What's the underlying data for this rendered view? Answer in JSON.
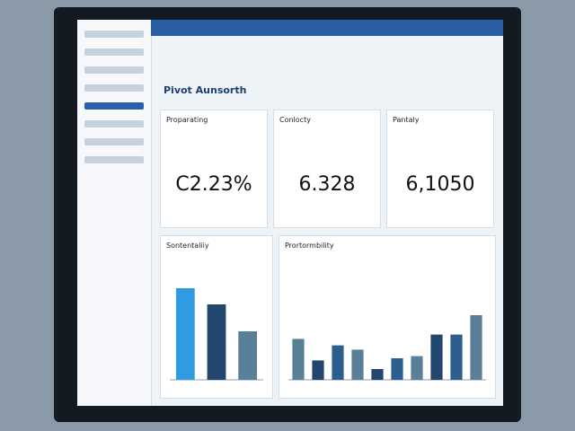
{
  "header": {
    "title": "Pivot Aunsorth"
  },
  "cards": [
    {
      "title": "Proparating",
      "value": "C2.23%"
    },
    {
      "title": "Conlocty",
      "value": "6.328"
    },
    {
      "title": "Pantaly",
      "value": "6,1050"
    }
  ],
  "charts": [
    {
      "title": "Sontentaliiy",
      "values": [
        85,
        70,
        45
      ],
      "colors": [
        "#2f9be0",
        "#23466e",
        "#5a7f98"
      ]
    },
    {
      "title": "Prortormbility",
      "values": [
        38,
        18,
        32,
        28,
        10,
        20,
        22,
        42,
        42,
        60
      ],
      "colors": [
        "#5a7f98",
        "#23466e",
        "#2c5f8f",
        "#5a7f98",
        "#23466e",
        "#2c5f8f",
        "#5a7f98",
        "#23466e",
        "#2c5f8f",
        "#5a7f98"
      ]
    }
  ]
}
